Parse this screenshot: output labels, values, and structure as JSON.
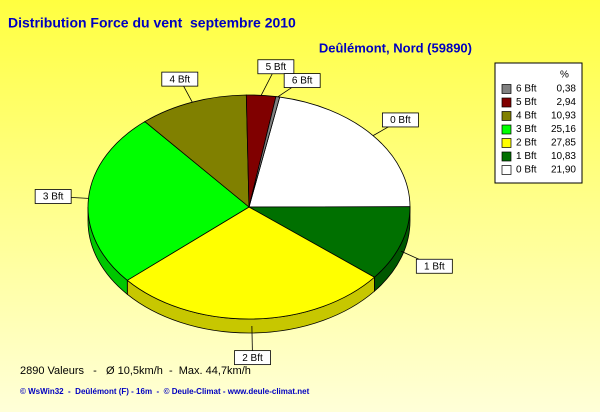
{
  "chart_data": {
    "type": "pie",
    "title": "Distribution Force du vent  septembre 2010",
    "subtitle": "Deûlémont, Nord (59890)",
    "categories": [
      "0 Bft",
      "1 Bft",
      "2 Bft",
      "3 Bft",
      "4 Bft",
      "5 Bft",
      "6 Bft"
    ],
    "values": [
      21.9,
      10.83,
      27.85,
      25.16,
      10.93,
      2.94,
      0.38
    ],
    "value_labels": [
      "21,90",
      "10,83",
      "27,85",
      "25,16",
      "10,93",
      "2,94",
      "0,38"
    ],
    "colors": [
      "#ffffff",
      "#007000",
      "#ffff00",
      "#00ff00",
      "#808000",
      "#800000",
      "#808080"
    ],
    "legend_title": "%",
    "legend": "right",
    "footer": "2890 Valeurs   -   Ø 10,5km/h  -  Max. 44,7km/h",
    "credit": "© WsWin32  -  Deûlémont (F) - 16m  -  © Deule-Climat - www.deule-climat.net"
  }
}
